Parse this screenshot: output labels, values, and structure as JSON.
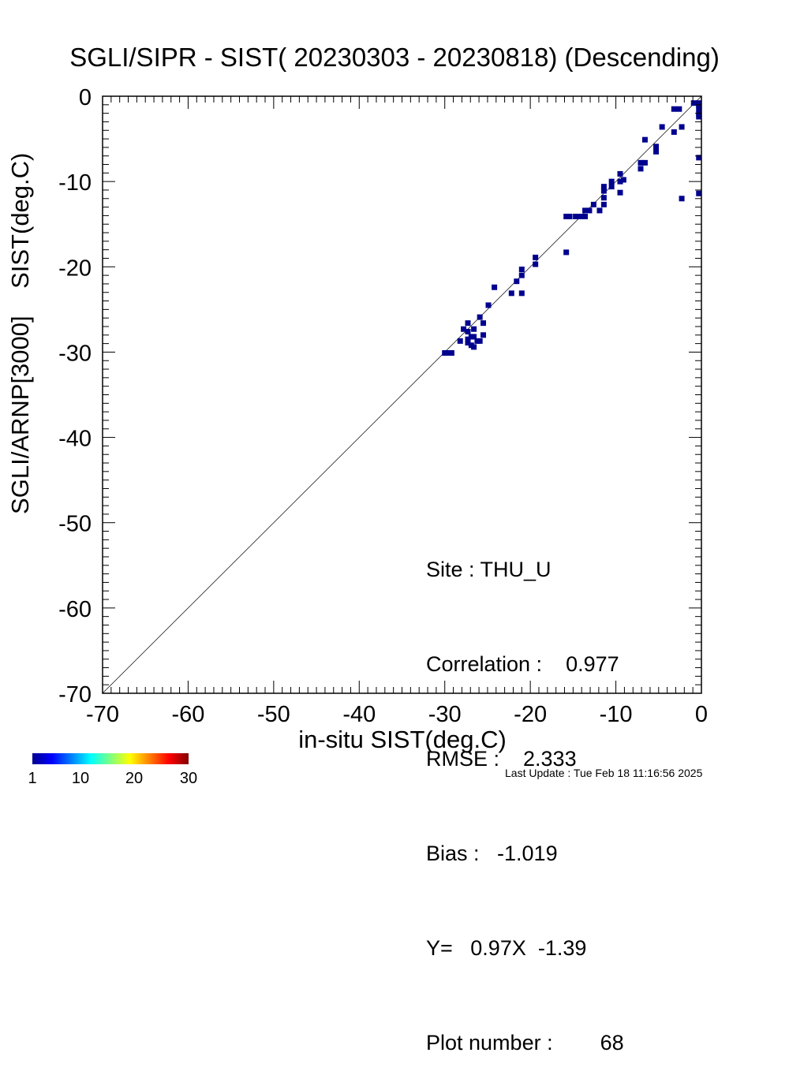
{
  "title": "SGLI/SIPR - SIST( 20230303 - 20230818) (Descending)",
  "chart_data": {
    "type": "scatter",
    "title": "SGLI/SIPR - SIST( 20230303 - 20230818) (Descending)",
    "xlabel": "in-situ SIST(deg.C)",
    "ylabel_line1": "SGLI/ARNP[3000]",
    "ylabel_line2": "SIST(deg.C)",
    "xlim": [
      -70,
      0
    ],
    "ylim": [
      -70,
      0
    ],
    "x_ticks": [
      "-70",
      "-60",
      "-50",
      "-40",
      "-30",
      "-20",
      "-10",
      "0"
    ],
    "y_ticks": [
      "-70",
      "-60",
      "-50",
      "-40",
      "-30",
      "-20",
      "-10",
      "0"
    ],
    "reference_line": "1:1",
    "grid": false,
    "point_color": "#00008f",
    "colorbar": {
      "min": 1,
      "max": 30,
      "ticks": [
        "1",
        "10",
        "20",
        "30"
      ],
      "colormap": "jet"
    },
    "points": [
      [
        -30.0,
        -30.1
      ],
      [
        -29.6,
        -30.1
      ],
      [
        -29.2,
        -30.1
      ],
      [
        -28.2,
        -28.7
      ],
      [
        -27.8,
        -27.3
      ],
      [
        -27.3,
        -26.6
      ],
      [
        -27.3,
        -27.6
      ],
      [
        -27.3,
        -28.5
      ],
      [
        -27.3,
        -28.9
      ],
      [
        -26.9,
        -28.2
      ],
      [
        -26.9,
        -29.2
      ],
      [
        -26.6,
        -27.3
      ],
      [
        -26.6,
        -28.2
      ],
      [
        -26.6,
        -29.4
      ],
      [
        -26.2,
        -28.7
      ],
      [
        -25.9,
        -25.9
      ],
      [
        -25.9,
        -28.7
      ],
      [
        -25.5,
        -26.6
      ],
      [
        -25.5,
        -28.0
      ],
      [
        -24.9,
        -24.5
      ],
      [
        -24.2,
        -22.4
      ],
      [
        -22.2,
        -23.1
      ],
      [
        -21.6,
        -21.7
      ],
      [
        -21.0,
        -21.0
      ],
      [
        -21.0,
        -20.3
      ],
      [
        -21.0,
        -23.1
      ],
      [
        -19.4,
        -19.7
      ],
      [
        -19.4,
        -18.9
      ],
      [
        -15.8,
        -18.3
      ],
      [
        -15.8,
        -14.1
      ],
      [
        -15.4,
        -14.1
      ],
      [
        -14.7,
        -14.1
      ],
      [
        -14.1,
        -14.1
      ],
      [
        -13.6,
        -14.1
      ],
      [
        -13.6,
        -13.4
      ],
      [
        -13.1,
        -13.4
      ],
      [
        -12.6,
        -12.7
      ],
      [
        -11.9,
        -13.4
      ],
      [
        -11.4,
        -12.7
      ],
      [
        -11.4,
        -11.9
      ],
      [
        -11.4,
        -11.1
      ],
      [
        -11.4,
        -10.6
      ],
      [
        -10.5,
        -10.6
      ],
      [
        -10.5,
        -10.0
      ],
      [
        -9.5,
        -11.3
      ],
      [
        -9.5,
        -10.0
      ],
      [
        -9.5,
        -9.1
      ],
      [
        -9.1,
        -9.8
      ],
      [
        -7.1,
        -8.5
      ],
      [
        -7.1,
        -7.8
      ],
      [
        -6.6,
        -7.8
      ],
      [
        -6.6,
        -5.1
      ],
      [
        -5.3,
        -6.5
      ],
      [
        -5.3,
        -5.9
      ],
      [
        -4.6,
        -3.6
      ],
      [
        -3.2,
        -4.2
      ],
      [
        -3.2,
        -1.5
      ],
      [
        -2.6,
        -1.5
      ],
      [
        -2.3,
        -3.6
      ],
      [
        -2.3,
        -12.0
      ],
      [
        -0.9,
        -0.8
      ],
      [
        -0.3,
        -0.8
      ],
      [
        -0.3,
        -1.1
      ],
      [
        -0.3,
        -1.5
      ],
      [
        -0.3,
        -2.1
      ],
      [
        -0.3,
        -2.4
      ],
      [
        -0.3,
        -7.2
      ],
      [
        -0.3,
        -11.4
      ]
    ]
  },
  "stats": {
    "site": "Site : THU_U",
    "correlation": "Correlation :    0.977",
    "rmse": "RMSE :    2.333",
    "bias": "Bias :   -1.019",
    "fit": "Y=   0.97X  -1.39",
    "plot_number": "Plot number :        68"
  },
  "footer": "Last Update : Tue Feb 18 11:16:56 2025"
}
